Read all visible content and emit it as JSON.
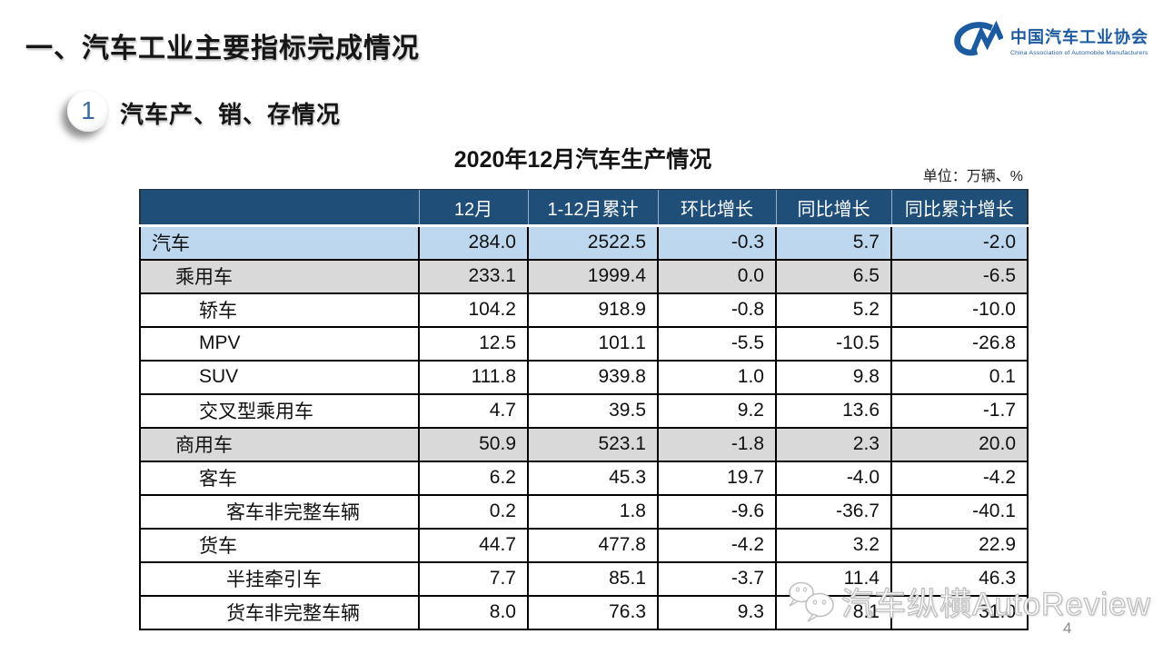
{
  "page": {
    "main_title": "一、汽车工业主要指标完成情况",
    "page_number": "4"
  },
  "logo": {
    "name_cn": "中国汽车工业协会",
    "name_en": "China Association of Automobile Manufacturers",
    "mark_icon": "caam-cm-monogram",
    "color": "#1C5BA0"
  },
  "section": {
    "badge_number": "1",
    "title": "汽车产、销、存情况"
  },
  "table": {
    "title": "2020年12月汽车生产情况",
    "unit_label": "单位：万辆、%",
    "columns": [
      "",
      "12月",
      "1-12月累计",
      "环比增长",
      "同比增长",
      "同比累计增长"
    ],
    "rows": [
      {
        "label": "汽车",
        "indent": 0,
        "style": "blue",
        "values": [
          "284.0",
          "2522.5",
          "-0.3",
          "5.7",
          "-2.0"
        ]
      },
      {
        "label": "乘用车",
        "indent": 1,
        "style": "gray",
        "values": [
          "233.1",
          "1999.4",
          "0.0",
          "6.5",
          "-6.5"
        ]
      },
      {
        "label": "轿车",
        "indent": 2,
        "style": "white",
        "values": [
          "104.2",
          "918.9",
          "-0.8",
          "5.2",
          "-10.0"
        ]
      },
      {
        "label": "MPV",
        "indent": 2,
        "style": "white",
        "values": [
          "12.5",
          "101.1",
          "-5.5",
          "-10.5",
          "-26.8"
        ]
      },
      {
        "label": "SUV",
        "indent": 2,
        "style": "white",
        "values": [
          "111.8",
          "939.8",
          "1.0",
          "9.8",
          "0.1"
        ]
      },
      {
        "label": "交叉型乘用车",
        "indent": 2,
        "style": "white",
        "values": [
          "4.7",
          "39.5",
          "9.2",
          "13.6",
          "-1.7"
        ]
      },
      {
        "label": "商用车",
        "indent": 1,
        "style": "gray",
        "values": [
          "50.9",
          "523.1",
          "-1.8",
          "2.3",
          "20.0"
        ]
      },
      {
        "label": "客车",
        "indent": 2,
        "style": "white",
        "values": [
          "6.2",
          "45.3",
          "19.7",
          "-4.0",
          "-4.2"
        ]
      },
      {
        "label": "客车非完整车辆",
        "indent": 3,
        "style": "white",
        "values": [
          "0.2",
          "1.8",
          "-9.6",
          "-36.7",
          "-40.1"
        ]
      },
      {
        "label": "货车",
        "indent": 2,
        "style": "white",
        "values": [
          "44.7",
          "477.8",
          "-4.2",
          "3.2",
          "22.9"
        ]
      },
      {
        "label": "半挂牵引车",
        "indent": 3,
        "style": "white",
        "values": [
          "7.7",
          "85.1",
          "-3.7",
          "11.4",
          "46.3"
        ]
      },
      {
        "label": "货车非完整车辆",
        "indent": 3,
        "style": "white",
        "values": [
          "8.0",
          "76.3",
          "9.3",
          "8.1",
          "31.0"
        ]
      }
    ]
  },
  "watermark": {
    "icon": "wechat-bubbles",
    "text": "汽车纵横AutoReview"
  },
  "colors": {
    "header_bg": "#1F4E79",
    "row_blue": "#BDD7EE",
    "row_gray": "#D9D9D9",
    "logo_blue": "#1C5BA0",
    "badge_number_blue": "#3A6B9C",
    "border_black": "#000000"
  }
}
